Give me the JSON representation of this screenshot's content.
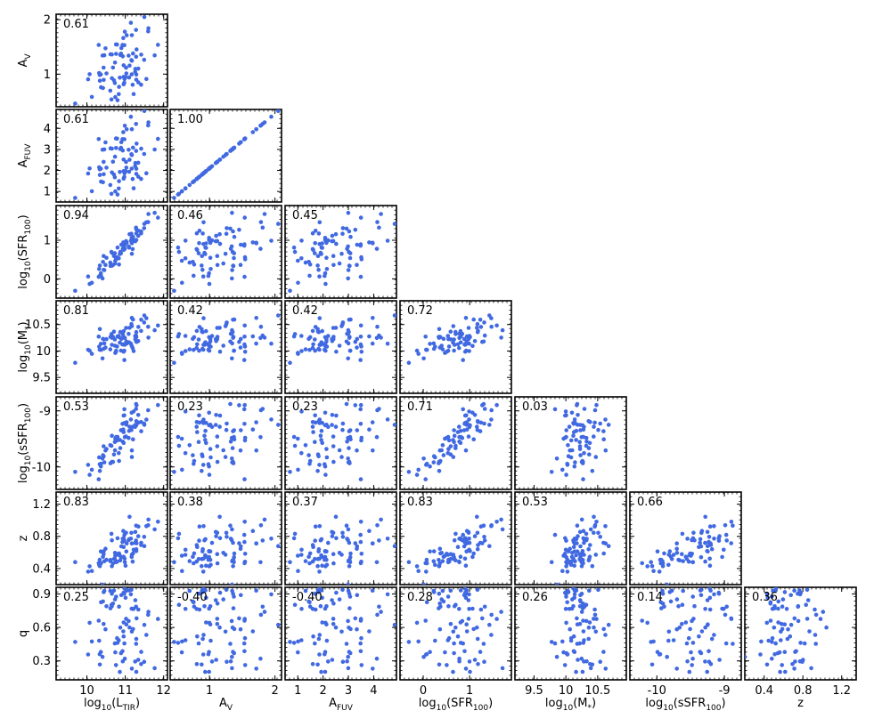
{
  "figure": {
    "point_color": "#4169e1",
    "frame_color": "#000000",
    "n_points": 80
  },
  "chart_data": {
    "type": "scatter",
    "layout": "corner-plot",
    "variables": [
      {
        "key": "LTIR",
        "label": "log10(LTIR)",
        "base": "log",
        "sub": "10",
        "inner": "(L",
        "isub": "TIR",
        "post": ")",
        "range": [
          9.2,
          12.1
        ],
        "ticks": [
          10,
          11,
          12
        ]
      },
      {
        "key": "AV",
        "label": "AV",
        "base": "A",
        "sub": "V",
        "range": [
          0.4,
          2.1
        ],
        "ticks": [
          1,
          2
        ]
      },
      {
        "key": "AFUV",
        "label": "AFUV",
        "base": "A",
        "sub": "FUV",
        "range": [
          0.5,
          4.9
        ],
        "ticks": [
          1,
          2,
          3,
          4
        ]
      },
      {
        "key": "SFR",
        "label": "log10(SFR100)",
        "base": "log",
        "sub": "10",
        "inner": "(SFR",
        "isub": "100",
        "post": ")",
        "range": [
          -0.5,
          1.9
        ],
        "ticks": [
          0,
          1
        ]
      },
      {
        "key": "Mstar",
        "label": "log10(M*)",
        "base": "log",
        "sub": "10",
        "inner": "(M",
        "isub": "*",
        "post": ")",
        "range": [
          9.2,
          10.95
        ],
        "ticks": [
          9.5,
          10.0,
          10.5
        ]
      },
      {
        "key": "sSFR",
        "label": "log10(sSFR100)",
        "base": "log",
        "sub": "10",
        "inner": "(sSFR",
        "isub": "100",
        "post": ")",
        "range": [
          -10.4,
          -8.75
        ],
        "ticks": [
          -10,
          -9
        ]
      },
      {
        "key": "z",
        "label": "z",
        "base": "z",
        "range": [
          0.2,
          1.35
        ],
        "ticks": [
          0.4,
          0.8,
          1.2
        ]
      },
      {
        "key": "q",
        "label": "q",
        "base": "q",
        "range": [
          0.13,
          0.96
        ],
        "ticks": [
          0.3,
          0.6,
          0.9
        ]
      }
    ],
    "correlations": [
      [
        null,
        null,
        null,
        null,
        null,
        null,
        null
      ],
      [
        "0.61",
        null,
        null,
        null,
        null,
        null,
        null
      ],
      [
        "0.61",
        "1.00",
        null,
        null,
        null,
        null,
        null
      ],
      [
        "0.94",
        "0.46",
        "0.45",
        null,
        null,
        null,
        null
      ],
      [
        "0.81",
        "0.42",
        "0.42",
        "0.72",
        null,
        null,
        null
      ],
      [
        "0.53",
        "0.23",
        "0.23",
        "0.71",
        "0.03",
        null,
        null
      ],
      [
        "0.83",
        "0.38",
        "0.37",
        "0.83",
        "0.53",
        "0.66",
        null
      ],
      [
        "0.25",
        "-0.40",
        "-0.40",
        "0.28",
        "0.26",
        "0.14",
        "0.36"
      ]
    ]
  }
}
